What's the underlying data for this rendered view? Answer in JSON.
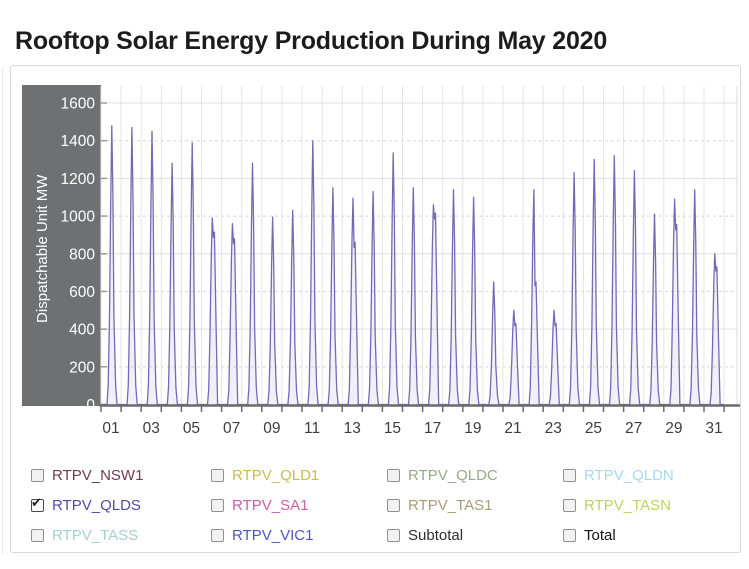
{
  "page": {
    "title": "Rooftop Solar Energy Production During May 2020"
  },
  "chart_data": {
    "type": "line",
    "title": "Rooftop Solar Energy Production During May 2020",
    "xlabel": "",
    "ylabel": "Dispatchable Unit MW",
    "x_days": 31,
    "x_tick_labels": [
      "01",
      "03",
      "05",
      "07",
      "09",
      "11",
      "13",
      "15",
      "17",
      "19",
      "21",
      "23",
      "25",
      "27",
      "29",
      "31"
    ],
    "ylim": [
      0,
      1600
    ],
    "y_ticks": [
      0,
      200,
      400,
      600,
      800,
      1000,
      1200,
      1400,
      1600
    ],
    "grid": "solid horizontal lines every 400 MW, dashed every 200 MW, vertical line each day",
    "legend_position": "bottom",
    "axis_panel_color": "#6e7072",
    "series": [
      {
        "name": "RTPV_QLDS",
        "color": "#7668b6",
        "visible": true,
        "unit": "MW",
        "daily_peak_mw": [
          1480,
          1470,
          1450,
          1280,
          1390,
          990,
          960,
          1280,
          995,
          1030,
          1400,
          1150,
          1095,
          1130,
          1335,
          1150,
          1060,
          1140,
          1100,
          650,
          500,
          1140,
          500,
          1230,
          1300,
          1320,
          1240,
          1010,
          1090,
          1140,
          800
        ],
        "midday_dip_mw": {
          "6": 915,
          "7": 880,
          "13": 860,
          "17": 1015,
          "21": 430,
          "22": 650,
          "23": 430,
          "29": 955,
          "31": 730
        }
      }
    ]
  },
  "legend": {
    "items": [
      {
        "label": "RTPV_NSW1",
        "color": "#6e3d50",
        "checked": false
      },
      {
        "label": "RTPV_QLD1",
        "color": "#c9bc4e",
        "checked": false
      },
      {
        "label": "RTPV_QLDC",
        "color": "#97a98b",
        "checked": false
      },
      {
        "label": "RTPV_QLDN",
        "color": "#a7d8ef",
        "checked": false
      },
      {
        "label": "RTPV_QLDS",
        "color": "#4f4ba2",
        "checked": true
      },
      {
        "label": "RTPV_SA1",
        "color": "#c75fa7",
        "checked": false
      },
      {
        "label": "RTPV_TAS1",
        "color": "#ab9c79",
        "checked": false
      },
      {
        "label": "RTPV_TASN",
        "color": "#bed163",
        "checked": false
      },
      {
        "label": "RTPV_TASS",
        "color": "#a3d2d0",
        "checked": false
      },
      {
        "label": "RTPV_VIC1",
        "color": "#4d56c4",
        "checked": false
      },
      {
        "label": "Subtotal",
        "color": "#2e2e2e",
        "checked": false
      },
      {
        "label": "Total",
        "color": "#141414",
        "checked": false
      }
    ]
  }
}
